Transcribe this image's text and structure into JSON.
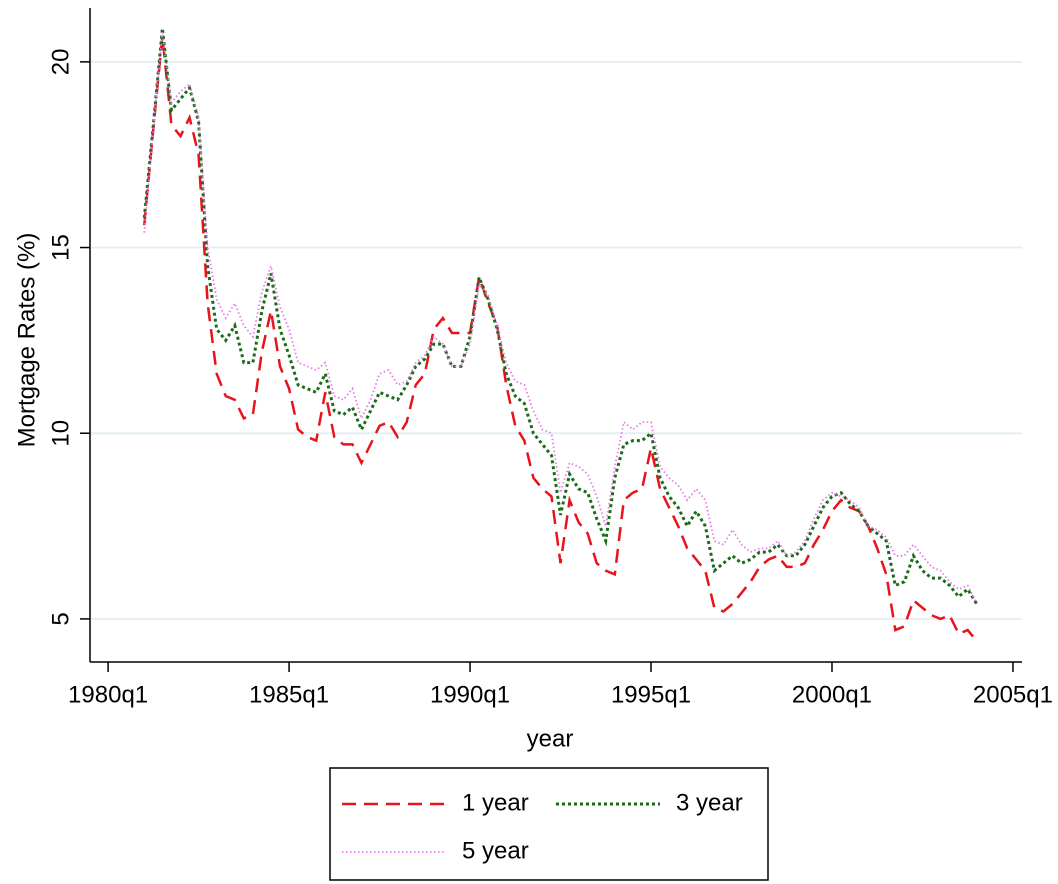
{
  "chart_data": {
    "type": "line",
    "y_label": "Mortgage Rates (%)",
    "x_label": "year",
    "x": [
      "1981q1",
      "1981q2",
      "1981q3",
      "1981q4",
      "1982q1",
      "1982q2",
      "1982q3",
      "1982q4",
      "1983q1",
      "1983q2",
      "1983q3",
      "1983q4",
      "1984q1",
      "1984q2",
      "1984q3",
      "1984q4",
      "1985q1",
      "1985q2",
      "1985q3",
      "1985q4",
      "1986q1",
      "1986q2",
      "1986q3",
      "1986q4",
      "1987q1",
      "1987q2",
      "1987q3",
      "1987q4",
      "1988q1",
      "1988q2",
      "1988q3",
      "1988q4",
      "1989q1",
      "1989q2",
      "1989q3",
      "1989q4",
      "1990q1",
      "1990q2",
      "1990q3",
      "1990q4",
      "1991q1",
      "1991q2",
      "1991q3",
      "1991q4",
      "1992q1",
      "1992q2",
      "1992q3",
      "1992q4",
      "1993q1",
      "1993q2",
      "1993q3",
      "1993q4",
      "1994q1",
      "1994q2",
      "1994q3",
      "1994q4",
      "1995q1",
      "1995q2",
      "1995q3",
      "1995q4",
      "1996q1",
      "1996q2",
      "1996q3",
      "1996q4",
      "1997q1",
      "1997q2",
      "1997q3",
      "1997q4",
      "1998q1",
      "1998q2",
      "1998q3",
      "1998q4",
      "1999q1",
      "1999q2",
      "1999q3",
      "1999q4",
      "2000q1",
      "2000q2",
      "2000q3",
      "2000q4",
      "2001q1",
      "2001q2",
      "2001q3",
      "2001q4",
      "2002q1",
      "2002q2",
      "2002q3",
      "2002q4",
      "2003q1",
      "2003q2",
      "2003q3",
      "2003q4",
      "2004q1"
    ],
    "series": [
      {
        "name": "1 year",
        "color": "#e8141b",
        "dash": "14 8",
        "width": 2.5,
        "values": [
          15.6,
          18.2,
          20.7,
          18.3,
          18.0,
          18.5,
          17.5,
          13.5,
          11.6,
          11.0,
          10.9,
          10.4,
          10.5,
          12.2,
          13.3,
          11.8,
          11.2,
          10.1,
          9.9,
          9.8,
          11.1,
          9.9,
          9.7,
          9.7,
          9.2,
          9.7,
          10.2,
          10.3,
          9.9,
          10.3,
          11.3,
          11.6,
          12.8,
          13.1,
          12.7,
          12.7,
          12.7,
          14.2,
          13.5,
          12.9,
          11.3,
          10.2,
          9.8,
          8.8,
          8.5,
          8.3,
          6.5,
          8.2,
          7.6,
          7.3,
          6.5,
          6.3,
          6.2,
          8.2,
          8.4,
          8.5,
          9.6,
          8.5,
          8.0,
          7.5,
          6.9,
          6.6,
          6.3,
          5.3,
          5.2,
          5.4,
          5.7,
          6.0,
          6.4,
          6.6,
          6.7,
          6.4,
          6.4,
          6.5,
          7.0,
          7.4,
          7.9,
          8.2,
          8.0,
          7.9,
          7.5,
          6.9,
          6.2,
          4.7,
          4.8,
          5.5,
          5.3,
          5.1,
          5.0,
          5.1,
          4.6,
          4.7,
          4.4
        ]
      },
      {
        "name": "3 year",
        "color": "#1a6b1a",
        "dash": "3 3",
        "width": 3,
        "values": [
          15.8,
          18.3,
          20.9,
          18.7,
          19.0,
          19.3,
          18.4,
          14.5,
          12.8,
          12.5,
          12.9,
          11.9,
          11.9,
          13.3,
          14.3,
          12.8,
          12.1,
          11.3,
          11.2,
          11.1,
          11.6,
          10.6,
          10.5,
          10.7,
          10.1,
          10.6,
          11.1,
          11.0,
          10.9,
          11.3,
          11.8,
          12.0,
          12.4,
          12.4,
          11.8,
          11.8,
          12.6,
          14.2,
          13.6,
          12.8,
          11.6,
          11.0,
          10.8,
          10.0,
          9.7,
          9.4,
          7.8,
          8.9,
          8.5,
          8.4,
          7.7,
          7.1,
          8.8,
          9.7,
          9.8,
          9.8,
          10.0,
          8.8,
          8.3,
          8.0,
          7.5,
          7.9,
          7.5,
          6.3,
          6.5,
          6.7,
          6.5,
          6.6,
          6.8,
          6.8,
          7.0,
          6.7,
          6.7,
          7.0,
          7.5,
          8.0,
          8.3,
          8.4,
          8.1,
          7.9,
          7.5,
          7.3,
          7.1,
          5.9,
          6.0,
          6.7,
          6.3,
          6.1,
          6.1,
          5.9,
          5.6,
          5.8,
          5.4
        ]
      },
      {
        "name": "5 year",
        "color": "#e87ae8",
        "dash": "1.5 2.5",
        "width": 1.8,
        "values": [
          15.4,
          18.2,
          20.8,
          18.9,
          19.2,
          19.4,
          18.5,
          15.0,
          13.6,
          13.1,
          13.5,
          12.9,
          12.6,
          13.8,
          14.5,
          13.4,
          12.8,
          11.9,
          11.8,
          11.7,
          11.9,
          11.0,
          10.9,
          11.2,
          10.4,
          10.9,
          11.6,
          11.7,
          11.3,
          11.4,
          11.9,
          12.1,
          12.6,
          12.4,
          11.8,
          11.8,
          12.4,
          14.0,
          13.7,
          12.9,
          11.9,
          11.4,
          11.3,
          10.6,
          10.1,
          10.0,
          8.4,
          9.2,
          9.1,
          8.9,
          8.3,
          7.5,
          9.1,
          10.3,
          10.1,
          10.3,
          10.3,
          9.1,
          8.8,
          8.6,
          8.2,
          8.5,
          8.2,
          7.1,
          7.0,
          7.4,
          7.0,
          6.8,
          6.9,
          6.9,
          7.1,
          6.7,
          6.8,
          7.1,
          7.7,
          8.2,
          8.4,
          8.3,
          8.2,
          8.0,
          7.5,
          7.4,
          7.2,
          6.7,
          6.7,
          7.0,
          6.7,
          6.4,
          6.3,
          6.0,
          5.8,
          5.9,
          5.4
        ]
      }
    ],
    "xlim": [
      "1979q3",
      "2005q2"
    ],
    "xticks": [
      "1980q1",
      "1985q1",
      "1990q1",
      "1995q1",
      "2000q1",
      "2005q1"
    ],
    "ylim": [
      3.84,
      21.45
    ],
    "yticks": [
      5,
      10,
      15,
      20
    ],
    "grid": true,
    "legend": "bottom"
  }
}
